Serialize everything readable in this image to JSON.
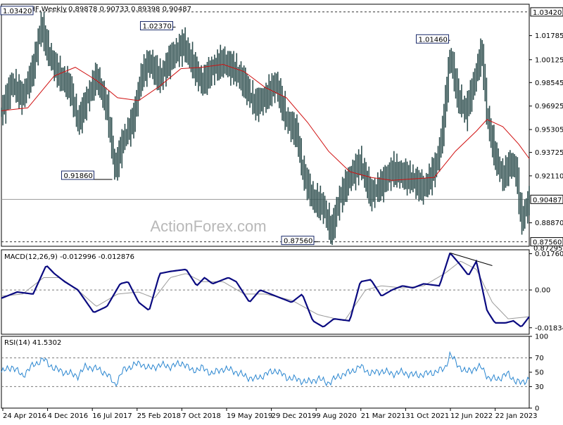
{
  "chart_data": {
    "type": "candlestick",
    "symbol": "USDCHF,Weekly",
    "ohlc_text": "0.89878 0.90733 0.89398 0.90487",
    "watermark": "ActionForex.com",
    "colors": {
      "candles": "#2f4f4f",
      "ma": "#d01010",
      "macd": "#0a0a80",
      "signal": "#9a9a9a",
      "rsi": "#2a86d0",
      "frame": "#000000",
      "grid": "#7a7a7a"
    },
    "price_panel": {
      "ylim": [
        0.8725,
        1.0395
      ],
      "y_ticks": [
        "1.01785",
        "1.00125",
        "0.98545",
        "0.96925",
        "0.95305",
        "0.93725",
        "0.92110",
        "0.88870"
      ],
      "highlight_levels": [
        {
          "value": 1.0342,
          "label": "1.03420",
          "style": "dashed"
        },
        {
          "value": 0.90487,
          "label": "0.90487",
          "style": "solid"
        },
        {
          "value": 0.8756,
          "label": "0.87560",
          "style": "dashed"
        }
      ],
      "extra_tick": "0.87295",
      "annotations": [
        {
          "label": "1.03420",
          "x": 0.06,
          "y": 1.0342
        },
        {
          "label": "1.02370",
          "x": 0.33,
          "y": 1.0237
        },
        {
          "label": "0.91860",
          "x": 0.21,
          "y": 0.9186
        },
        {
          "label": "0.87560",
          "x": 0.6,
          "y": 0.8756
        },
        {
          "label": "1.01460",
          "x": 0.85,
          "y": 1.0146
        }
      ],
      "close_path": [
        [
          0.0,
          0.965
        ],
        [
          0.02,
          0.985
        ],
        [
          0.04,
          0.975
        ],
        [
          0.06,
          0.995
        ],
        [
          0.075,
          1.025
        ],
        [
          0.09,
          1.005
        ],
        [
          0.11,
          0.99
        ],
        [
          0.13,
          0.982
        ],
        [
          0.145,
          0.958
        ],
        [
          0.16,
          0.972
        ],
        [
          0.18,
          0.99
        ],
        [
          0.2,
          0.968
        ],
        [
          0.215,
          0.925
        ],
        [
          0.23,
          0.945
        ],
        [
          0.25,
          0.96
        ],
        [
          0.265,
          0.99
        ],
        [
          0.28,
          1.0
        ],
        [
          0.3,
          0.988
        ],
        [
          0.32,
          1.002
        ],
        [
          0.345,
          1.012
        ],
        [
          0.36,
          1.0
        ],
        [
          0.38,
          0.985
        ],
        [
          0.4,
          0.995
        ],
        [
          0.42,
          1.0
        ],
        [
          0.44,
          0.995
        ],
        [
          0.46,
          0.985
        ],
        [
          0.48,
          0.97
        ],
        [
          0.5,
          0.975
        ],
        [
          0.52,
          0.985
        ],
        [
          0.54,
          0.96
        ],
        [
          0.56,
          0.95
        ],
        [
          0.57,
          0.925
        ],
        [
          0.59,
          0.905
        ],
        [
          0.61,
          0.9
        ],
        [
          0.625,
          0.882
        ],
        [
          0.64,
          0.905
        ],
        [
          0.66,
          0.92
        ],
        [
          0.68,
          0.93
        ],
        [
          0.7,
          0.908
        ],
        [
          0.72,
          0.915
        ],
        [
          0.74,
          0.925
        ],
        [
          0.76,
          0.922
        ],
        [
          0.78,
          0.918
        ],
        [
          0.8,
          0.912
        ],
        [
          0.81,
          0.918
        ],
        [
          0.825,
          0.93
        ],
        [
          0.835,
          0.95
        ],
        [
          0.85,
          1.005
        ],
        [
          0.865,
          0.975
        ],
        [
          0.88,
          0.965
        ],
        [
          0.895,
          0.985
        ],
        [
          0.91,
          1.008
        ],
        [
          0.92,
          0.962
        ],
        [
          0.935,
          0.935
        ],
        [
          0.95,
          0.92
        ],
        [
          0.965,
          0.93
        ],
        [
          0.975,
          0.925
        ],
        [
          0.985,
          0.89
        ],
        [
          1.0,
          0.9049
        ]
      ],
      "ma_path": [
        [
          0.0,
          0.966
        ],
        [
          0.05,
          0.968
        ],
        [
          0.1,
          0.99
        ],
        [
          0.14,
          0.996
        ],
        [
          0.18,
          0.987
        ],
        [
          0.22,
          0.975
        ],
        [
          0.26,
          0.973
        ],
        [
          0.3,
          0.983
        ],
        [
          0.34,
          0.995
        ],
        [
          0.38,
          0.996
        ],
        [
          0.42,
          0.998
        ],
        [
          0.46,
          0.993
        ],
        [
          0.5,
          0.982
        ],
        [
          0.54,
          0.975
        ],
        [
          0.58,
          0.958
        ],
        [
          0.62,
          0.938
        ],
        [
          0.66,
          0.924
        ],
        [
          0.7,
          0.92
        ],
        [
          0.74,
          0.918
        ],
        [
          0.78,
          0.919
        ],
        [
          0.82,
          0.92
        ],
        [
          0.86,
          0.938
        ],
        [
          0.9,
          0.952
        ],
        [
          0.92,
          0.96
        ],
        [
          0.95,
          0.955
        ],
        [
          0.98,
          0.943
        ],
        [
          1.0,
          0.933
        ]
      ]
    },
    "macd_panel": {
      "label": "MACD(12,26,9) -0.012996 -0.012876",
      "ylim": [
        -0.0215,
        0.0195
      ],
      "y_ticks": [
        "0.017603",
        "0.00",
        "-0.01834"
      ],
      "zero": 0,
      "macd_path": [
        [
          0.0,
          -0.004
        ],
        [
          0.03,
          -0.001
        ],
        [
          0.06,
          -0.002
        ],
        [
          0.085,
          0.012
        ],
        [
          0.1,
          0.008
        ],
        [
          0.12,
          0.004
        ],
        [
          0.145,
          0.0
        ],
        [
          0.175,
          -0.011
        ],
        [
          0.2,
          -0.008
        ],
        [
          0.225,
          0.003
        ],
        [
          0.24,
          0.004
        ],
        [
          0.26,
          -0.006
        ],
        [
          0.28,
          -0.01
        ],
        [
          0.3,
          0.008
        ],
        [
          0.32,
          0.009
        ],
        [
          0.35,
          0.01
        ],
        [
          0.37,
          0.002
        ],
        [
          0.385,
          0.006
        ],
        [
          0.4,
          0.003
        ],
        [
          0.43,
          0.006
        ],
        [
          0.445,
          0.004
        ],
        [
          0.47,
          -0.006
        ],
        [
          0.49,
          0.0
        ],
        [
          0.52,
          -0.003
        ],
        [
          0.55,
          -0.006
        ],
        [
          0.57,
          -0.002
        ],
        [
          0.59,
          -0.015
        ],
        [
          0.61,
          -0.018
        ],
        [
          0.63,
          -0.014
        ],
        [
          0.66,
          -0.015
        ],
        [
          0.68,
          0.004
        ],
        [
          0.7,
          0.005
        ],
        [
          0.72,
          -0.003
        ],
        [
          0.74,
          0.0
        ],
        [
          0.76,
          0.002
        ],
        [
          0.78,
          0.001
        ],
        [
          0.8,
          0.003
        ],
        [
          0.83,
          0.002
        ],
        [
          0.85,
          0.018
        ],
        [
          0.87,
          0.012
        ],
        [
          0.885,
          0.007
        ],
        [
          0.9,
          0.014
        ],
        [
          0.92,
          -0.01
        ],
        [
          0.935,
          -0.016
        ],
        [
          0.955,
          -0.016
        ],
        [
          0.97,
          -0.015
        ],
        [
          0.985,
          -0.018
        ],
        [
          1.0,
          -0.013
        ]
      ],
      "signal_path": [
        [
          0.0,
          -0.003
        ],
        [
          0.04,
          -0.002
        ],
        [
          0.08,
          0.006
        ],
        [
          0.11,
          0.006
        ],
        [
          0.14,
          0.001
        ],
        [
          0.18,
          -0.008
        ],
        [
          0.22,
          -0.002
        ],
        [
          0.26,
          -0.001
        ],
        [
          0.29,
          -0.004
        ],
        [
          0.32,
          0.006
        ],
        [
          0.35,
          0.008
        ],
        [
          0.38,
          0.004
        ],
        [
          0.42,
          0.004
        ],
        [
          0.46,
          -0.002
        ],
        [
          0.5,
          -0.002
        ],
        [
          0.55,
          -0.005
        ],
        [
          0.6,
          -0.012
        ],
        [
          0.65,
          -0.015
        ],
        [
          0.69,
          0.0
        ],
        [
          0.72,
          0.002
        ],
        [
          0.76,
          0.001
        ],
        [
          0.8,
          0.002
        ],
        [
          0.84,
          0.008
        ],
        [
          0.87,
          0.014
        ],
        [
          0.9,
          0.01
        ],
        [
          0.93,
          -0.006
        ],
        [
          0.96,
          -0.014
        ],
        [
          1.0,
          -0.013
        ]
      ],
      "trendline": [
        [
          0.85,
          0.018
        ],
        [
          0.93,
          0.0118
        ]
      ]
    },
    "rsi_panel": {
      "label": "RSI(14) 41.5302",
      "ylim": [
        0,
        100
      ],
      "y_ticks": [
        "100",
        "70",
        "50",
        "30",
        "0"
      ],
      "levels": [
        70,
        30
      ],
      "rsi_path": [
        [
          0.0,
          50
        ],
        [
          0.02,
          58
        ],
        [
          0.04,
          45
        ],
        [
          0.06,
          60
        ],
        [
          0.08,
          68
        ],
        [
          0.1,
          55
        ],
        [
          0.12,
          50
        ],
        [
          0.145,
          45
        ],
        [
          0.16,
          58
        ],
        [
          0.18,
          55
        ],
        [
          0.2,
          48
        ],
        [
          0.215,
          32
        ],
        [
          0.23,
          52
        ],
        [
          0.25,
          60
        ],
        [
          0.265,
          62
        ],
        [
          0.28,
          55
        ],
        [
          0.3,
          60
        ],
        [
          0.32,
          58
        ],
        [
          0.345,
          63
        ],
        [
          0.36,
          52
        ],
        [
          0.38,
          56
        ],
        [
          0.4,
          48
        ],
        [
          0.42,
          55
        ],
        [
          0.44,
          52
        ],
        [
          0.46,
          45
        ],
        [
          0.48,
          40
        ],
        [
          0.5,
          47
        ],
        [
          0.52,
          53
        ],
        [
          0.54,
          43
        ],
        [
          0.56,
          40
        ],
        [
          0.58,
          36
        ],
        [
          0.6,
          41
        ],
        [
          0.62,
          35
        ],
        [
          0.64,
          45
        ],
        [
          0.66,
          50
        ],
        [
          0.68,
          58
        ],
        [
          0.7,
          48
        ],
        [
          0.72,
          52
        ],
        [
          0.74,
          48
        ],
        [
          0.76,
          50
        ],
        [
          0.78,
          46
        ],
        [
          0.8,
          47
        ],
        [
          0.82,
          50
        ],
        [
          0.84,
          55
        ],
        [
          0.85,
          75
        ],
        [
          0.865,
          60
        ],
        [
          0.88,
          50
        ],
        [
          0.895,
          55
        ],
        [
          0.91,
          57
        ],
        [
          0.925,
          40
        ],
        [
          0.945,
          42
        ],
        [
          0.96,
          48
        ],
        [
          0.975,
          37
        ],
        [
          0.985,
          35
        ],
        [
          1.0,
          41.5
        ]
      ]
    },
    "x_ticks": [
      "24 Apr 2016",
      "4 Dec 2016",
      "16 Jul 2017",
      "25 Feb 2018",
      "7 Oct 2018",
      "19 May 2019",
      "29 Dec 2019",
      "9 Aug 2020",
      "21 Mar 2021",
      "31 Oct 2021",
      "12 Jun 2022",
      "22 Jan 2023"
    ]
  }
}
